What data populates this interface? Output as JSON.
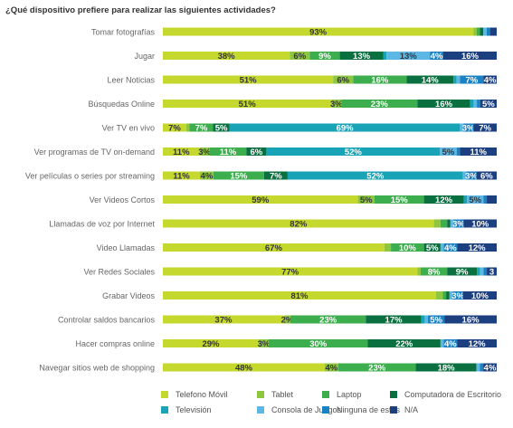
{
  "chart_data": {
    "type": "bar",
    "stacked": true,
    "orientation": "horizontal",
    "title": "¿Qué dispositivo prefiere para realizar las siguientes actividades?",
    "xlim": [
      0,
      100
    ],
    "legend_position": "bottom",
    "categories": [
      "Tomar fotografías",
      "Jugar",
      "Leer Noticias",
      "Búsquedas Online",
      "Ver TV en vivo",
      "Ver programas de TV on-demand",
      "Ver películas o series por streaming",
      "Ver Videos Cortos",
      "Llamadas de voz por Internet",
      "Video Llamadas",
      "Ver Redes Sociales",
      "Grabar Videos",
      "Controlar saldos bancarios",
      "Hacer compras online",
      "Navegar sitios web de shopping"
    ],
    "series": [
      {
        "name": "Telefono Móvil",
        "color": "#c5d82e",
        "values": [
          93,
          38,
          51,
          51,
          7,
          11,
          11,
          59,
          82,
          67,
          77,
          81,
          37,
          29,
          48
        ]
      },
      {
        "name": "Tablet",
        "color": "#8fc640",
        "values": [
          1,
          6,
          6,
          3,
          1,
          3,
          4,
          5,
          2,
          2,
          1,
          2,
          2,
          3,
          4
        ]
      },
      {
        "name": "Laptop",
        "color": "#3dae4d",
        "values": [
          1,
          9,
          16,
          23,
          7,
          11,
          15,
          15,
          2,
          10,
          8,
          1,
          23,
          30,
          23
        ]
      },
      {
        "name": "Computadora de Escritorio",
        "color": "#0a7040",
        "values": [
          1,
          13,
          14,
          16,
          5,
          6,
          7,
          12,
          1,
          5,
          9,
          1,
          17,
          22,
          18
        ]
      },
      {
        "name": "Televisión",
        "color": "#18a3b6",
        "values": [
          0,
          1,
          1,
          1,
          69,
          52,
          52,
          1,
          0,
          0,
          1,
          0,
          1,
          0,
          0
        ]
      },
      {
        "name": "Consola de Juegos",
        "color": "#5cb7e4",
        "values": [
          1,
          13,
          1,
          1,
          1,
          5,
          1,
          5,
          1,
          1,
          1,
          1,
          1,
          1,
          1
        ]
      },
      {
        "name": "Ninguna de estas",
        "color": "#1a82c4",
        "values": [
          1,
          4,
          7,
          1,
          3,
          1,
          3,
          1,
          3,
          4,
          1,
          3,
          5,
          4,
          1
        ]
      },
      {
        "name": "N/A",
        "color": "#1c3f80",
        "values": [
          2,
          16,
          4,
          5,
          7,
          11,
          6,
          3,
          10,
          12,
          3,
          10,
          16,
          12,
          4
        ]
      }
    ],
    "labels": [
      [
        "93%",
        "",
        "",
        "",
        "",
        "",
        "",
        ""
      ],
      [
        "38%",
        "6%",
        "9%",
        "13%",
        "",
        "13%",
        "4%",
        "16%"
      ],
      [
        "51%",
        "6%",
        "16%",
        "14%",
        "",
        "",
        "7%",
        "4%"
      ],
      [
        "51%",
        "3%",
        "23%",
        "16%",
        "",
        "",
        "",
        "5%"
      ],
      [
        "7%",
        "",
        "7%",
        "5%",
        "69%",
        "",
        "3%",
        "7%"
      ],
      [
        "11%",
        "3%",
        "11%",
        "6%",
        "52%",
        "5%",
        "",
        "11%"
      ],
      [
        "11%",
        "4%",
        "15%",
        "7%",
        "52%",
        "",
        "3%",
        "6%"
      ],
      [
        "59%",
        "5%",
        "15%",
        "12%",
        "",
        "5%",
        "",
        ""
      ],
      [
        "82%",
        "",
        "",
        "",
        "",
        "",
        "3%",
        "10%"
      ],
      [
        "67%",
        "",
        "10%",
        "5%",
        "",
        "",
        "4%",
        "12%"
      ],
      [
        "77%",
        "",
        "8%",
        "9%",
        "",
        "",
        "",
        "3"
      ],
      [
        "81%",
        "",
        "",
        "",
        "",
        "",
        "3%",
        "10%"
      ],
      [
        "37%",
        "2%",
        "23%",
        "17%",
        "",
        "",
        "5%",
        "16%"
      ],
      [
        "29%",
        "3%",
        "30%",
        "22%",
        "",
        "",
        "4%",
        "12%"
      ],
      [
        "48%",
        "4%",
        "23%",
        "18%",
        "",
        "",
        "",
        "4%"
      ]
    ]
  }
}
